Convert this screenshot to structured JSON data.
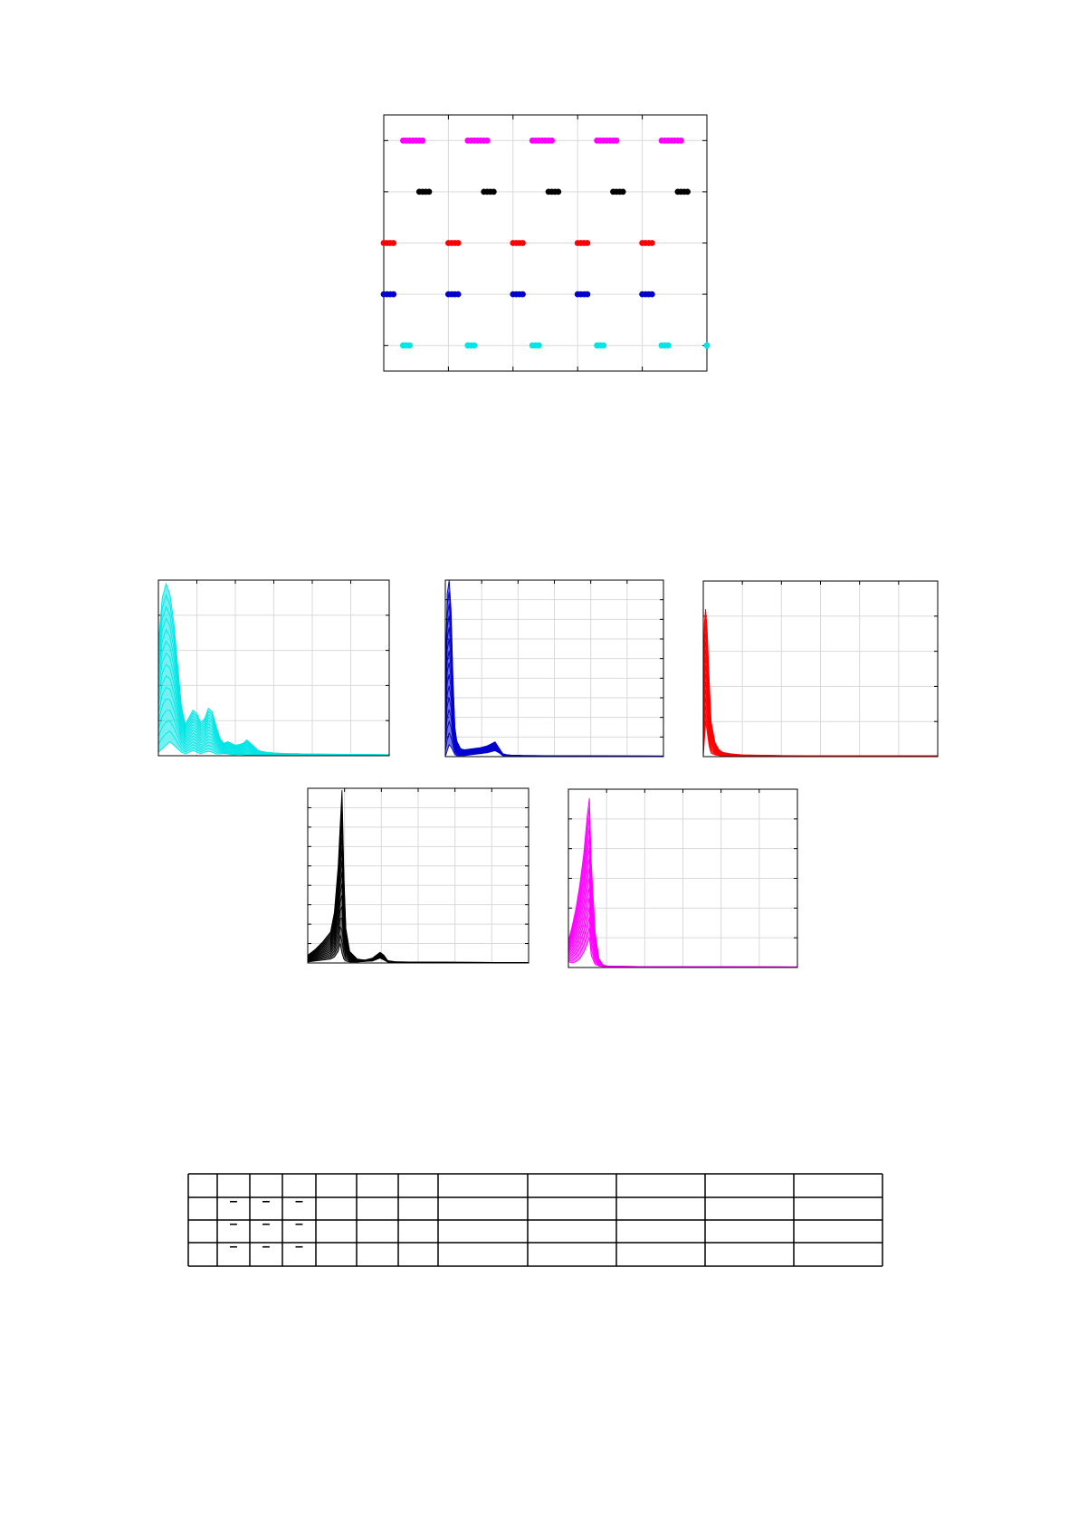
{
  "chart_data": [
    {
      "type": "scatter",
      "title": "",
      "xlabel": "",
      "ylabel": "",
      "grid": true,
      "xlim": [
        0,
        5
      ],
      "ylim": [
        0.5,
        5.5
      ],
      "series": [
        {
          "color": "#00e5e5",
          "row": 1,
          "x": [
            0.3,
            0.35,
            0.4,
            1.3,
            1.35,
            1.4,
            2.3,
            2.35,
            2.4,
            3.3,
            3.35,
            3.4,
            4.3,
            4.35,
            4.4,
            5.0
          ]
        },
        {
          "color": "#0000cc",
          "row": 2,
          "x": [
            0.0,
            0.05,
            0.1,
            0.15,
            1.0,
            1.05,
            1.1,
            1.15,
            2.0,
            2.05,
            2.1,
            2.15,
            3.0,
            3.05,
            3.1,
            3.15,
            4.0,
            4.05,
            4.1,
            4.15
          ]
        },
        {
          "color": "#ff0000",
          "row": 3,
          "x": [
            0.0,
            0.05,
            0.1,
            0.15,
            1.0,
            1.05,
            1.1,
            1.15,
            2.0,
            2.05,
            2.1,
            2.15,
            3.0,
            3.05,
            3.1,
            3.15,
            4.0,
            4.05,
            4.1,
            4.15
          ]
        },
        {
          "color": "#000000",
          "row": 4,
          "x": [
            0.55,
            0.6,
            0.65,
            0.7,
            1.55,
            1.6,
            1.65,
            1.7,
            2.55,
            2.6,
            2.65,
            2.7,
            3.55,
            3.6,
            3.65,
            3.7,
            4.55,
            4.6,
            4.65,
            4.7
          ]
        },
        {
          "color": "#ff00ff",
          "row": 5,
          "x": [
            0.3,
            0.35,
            0.4,
            0.45,
            0.5,
            0.55,
            0.6,
            1.3,
            1.35,
            1.4,
            1.45,
            1.5,
            1.55,
            1.6,
            2.3,
            2.35,
            2.4,
            2.45,
            2.5,
            2.55,
            2.6,
            3.3,
            3.35,
            3.4,
            3.45,
            3.5,
            3.55,
            3.6,
            4.3,
            4.35,
            4.4,
            4.45,
            4.5,
            4.55,
            4.6
          ]
        }
      ]
    },
    {
      "type": "line",
      "title": "",
      "xlabel": "",
      "ylabel": "",
      "grid": true,
      "color": "#00e5e5",
      "xlim": [
        0,
        6
      ],
      "ylim": [
        0,
        5
      ],
      "envelope": {
        "x": [
          0,
          0.1,
          0.2,
          0.3,
          0.4,
          0.5,
          0.6,
          0.7,
          0.8,
          0.9,
          1.0,
          1.1,
          1.2,
          1.3,
          1.4,
          1.5,
          1.6,
          1.7,
          1.8,
          1.9,
          2.0,
          2.1,
          2.2,
          2.3,
          2.4,
          2.5,
          2.6,
          2.7,
          2.8,
          2.9,
          3.0,
          3.2,
          3.4,
          3.6,
          3.8,
          4.0,
          5.0,
          6.0
        ],
        "low": [
          0.1,
          0.2,
          0.3,
          0.4,
          0.3,
          0.2,
          0.1,
          0.05,
          0.1,
          0.15,
          0.1,
          0.05,
          0.1,
          0.12,
          0.1,
          0.05,
          0.05,
          0.06,
          0.05,
          0.03,
          0.03,
          0.04,
          0.03,
          0.02,
          0.02,
          0.02,
          0.02,
          0.02,
          0.02,
          0.02,
          0.02,
          0.02,
          0.01,
          0.01,
          0.01,
          0.01,
          0.01,
          0.01
        ],
        "high": [
          3.2,
          4.5,
          4.9,
          4.6,
          3.8,
          2.6,
          1.4,
          0.9,
          1.1,
          1.3,
          1.2,
          0.95,
          1.05,
          1.35,
          1.25,
          0.85,
          0.5,
          0.35,
          0.4,
          0.35,
          0.3,
          0.32,
          0.35,
          0.45,
          0.35,
          0.25,
          0.15,
          0.12,
          0.1,
          0.09,
          0.08,
          0.07,
          0.06,
          0.06,
          0.05,
          0.05,
          0.04,
          0.03
        ]
      }
    },
    {
      "type": "line",
      "title": "",
      "xlabel": "",
      "ylabel": "",
      "grid": true,
      "color": "#0000cc",
      "xlim": [
        0,
        5.7
      ],
      "ylim": [
        0,
        9
      ],
      "envelope": {
        "x": [
          0,
          0.05,
          0.1,
          0.15,
          0.2,
          0.25,
          0.3,
          0.4,
          0.5,
          0.7,
          0.9,
          1.1,
          1.2,
          1.3,
          1.4,
          1.5,
          1.6,
          1.7,
          2.0,
          3.0,
          5.7
        ],
        "low": [
          0.0,
          0.3,
          0.6,
          0.5,
          0.3,
          0.1,
          0.05,
          0.05,
          0.05,
          0.1,
          0.15,
          0.2,
          0.25,
          0.3,
          0.2,
          0.05,
          0.03,
          0.03,
          0.02,
          0.01,
          0.01
        ],
        "high": [
          4.0,
          8.3,
          9.0,
          7.5,
          4.0,
          1.5,
          0.8,
          0.4,
          0.35,
          0.4,
          0.45,
          0.55,
          0.65,
          0.75,
          0.45,
          0.15,
          0.1,
          0.08,
          0.06,
          0.04,
          0.03
        ]
      }
    },
    {
      "type": "line",
      "title": "",
      "xlabel": "",
      "ylabel": "",
      "grid": true,
      "color": "#ff0000",
      "xlim": [
        0,
        6
      ],
      "ylim": [
        0,
        5
      ],
      "envelope": {
        "x": [
          0,
          0.03,
          0.06,
          0.1,
          0.15,
          0.2,
          0.3,
          0.4,
          0.5,
          0.7,
          1.0,
          2.0,
          6.0
        ],
        "low": [
          0.0,
          0.5,
          1.0,
          0.7,
          0.3,
          0.1,
          0.05,
          0.03,
          0.02,
          0.02,
          0.01,
          0.01,
          0.01
        ],
        "high": [
          2.0,
          3.8,
          4.2,
          3.6,
          2.2,
          1.0,
          0.4,
          0.2,
          0.12,
          0.08,
          0.05,
          0.03,
          0.02
        ]
      }
    },
    {
      "type": "line",
      "title": "",
      "xlabel": "",
      "ylabel": "",
      "grid": true,
      "color": "#000000",
      "xlim": [
        0,
        5.8
      ],
      "ylim": [
        0,
        9
      ],
      "envelope": {
        "x": [
          0,
          0.2,
          0.4,
          0.6,
          0.7,
          0.8,
          0.85,
          0.9,
          0.95,
          1.0,
          1.1,
          1.3,
          1.5,
          1.7,
          1.9,
          2.0,
          2.1,
          2.3,
          3.0,
          5.8
        ],
        "low": [
          0.05,
          0.1,
          0.15,
          0.2,
          0.3,
          0.6,
          1.0,
          0.5,
          0.2,
          0.1,
          0.05,
          0.05,
          0.08,
          0.1,
          0.25,
          0.15,
          0.05,
          0.03,
          0.02,
          0.01
        ],
        "high": [
          0.4,
          0.7,
          1.1,
          1.6,
          2.6,
          5.0,
          7.0,
          8.9,
          4.5,
          1.8,
          0.6,
          0.2,
          0.15,
          0.25,
          0.55,
          0.4,
          0.12,
          0.06,
          0.04,
          0.02
        ]
      }
    },
    {
      "type": "line",
      "title": "",
      "xlabel": "",
      "ylabel": "",
      "grid": true,
      "color": "#ff00ff",
      "xlim": [
        0,
        6
      ],
      "ylim": [
        0,
        6
      ],
      "envelope": {
        "x": [
          0,
          0.1,
          0.2,
          0.3,
          0.4,
          0.5,
          0.55,
          0.6,
          0.7,
          0.8,
          0.9,
          1.0,
          2.0,
          6.0
        ],
        "low": [
          0.2,
          0.15,
          0.2,
          0.3,
          0.5,
          0.8,
          1.0,
          0.4,
          0.1,
          0.05,
          0.03,
          0.02,
          0.01,
          0.01
        ],
        "high": [
          0.9,
          1.4,
          2.0,
          2.8,
          3.8,
          5.2,
          5.7,
          3.5,
          1.2,
          0.3,
          0.1,
          0.05,
          0.03,
          0.02
        ]
      }
    }
  ],
  "table": {
    "rows": [
      [
        "",
        "",
        "",
        "",
        "",
        "",
        "",
        "",
        "",
        "",
        "",
        ""
      ],
      [
        "",
        "–",
        "–",
        "–",
        "",
        "",
        "",
        "",
        "",
        "",
        "",
        ""
      ],
      [
        "",
        "–",
        "–",
        "–",
        "",
        "",
        "",
        "",
        "",
        "",
        "",
        ""
      ],
      [
        "",
        "–",
        "–",
        "–",
        "",
        "",
        "",
        "",
        "",
        "",
        "",
        ""
      ]
    ]
  }
}
